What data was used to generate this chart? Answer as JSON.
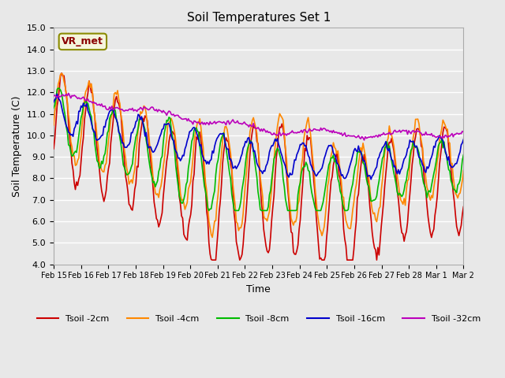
{
  "title": "Soil Temperatures Set 1",
  "xlabel": "Time",
  "ylabel": "Soil Temperature (C)",
  "ylim": [
    4.0,
    15.0
  ],
  "yticks": [
    4.0,
    5.0,
    6.0,
    7.0,
    8.0,
    9.0,
    10.0,
    11.0,
    12.0,
    13.0,
    14.0,
    15.0
  ],
  "xtick_labels": [
    "Feb 15",
    "Feb 16",
    "Feb 17",
    "Feb 18",
    "Feb 19",
    "Feb 20",
    "Feb 21",
    "Feb 22",
    "Feb 23",
    "Feb 24",
    "Feb 25",
    "Feb 26",
    "Feb 27",
    "Feb 28",
    "Mar 1",
    "Mar 2"
  ],
  "colors": {
    "Tsoil -2cm": "#cc0000",
    "Tsoil -4cm": "#ff8800",
    "Tsoil -8cm": "#00bb00",
    "Tsoil -16cm": "#0000cc",
    "Tsoil -32cm": "#bb00bb"
  },
  "legend_label": "VR_met",
  "plot_bg_color": "#e8e8e8",
  "grid_color": "#ffffff"
}
